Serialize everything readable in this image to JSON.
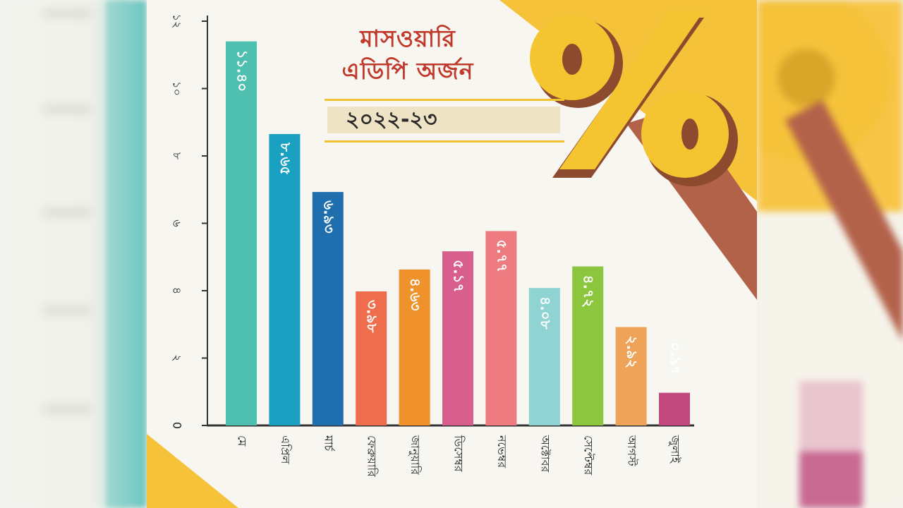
{
  "title_lines": [
    "মাসওয়ারি",
    "এডিপি অর্জন"
  ],
  "year": "২০২২-২৩",
  "percent_symbol": "%",
  "colors": {
    "title": "#c0392b",
    "accent_yellow": "#f5c23a",
    "accent_brown": "#b3624a"
  },
  "chart_data": {
    "type": "bar",
    "title": "মাসওয়ারি এডিপি অর্জন",
    "subtitle": "২০২২-২৩",
    "xlabel": "",
    "ylabel": "",
    "ylim": [
      0,
      12
    ],
    "grid": false,
    "legend": "none",
    "y_ticks": [
      {
        "value": 0,
        "label": "0"
      },
      {
        "value": 2,
        "label": "২"
      },
      {
        "value": 4,
        "label": "৪"
      },
      {
        "value": 6,
        "label": "৬"
      },
      {
        "value": 8,
        "label": "৮"
      },
      {
        "value": 10,
        "label": "১০"
      },
      {
        "value": 12,
        "label": "১২"
      }
    ],
    "categories": [
      "মে",
      "এপ্রিল",
      "মার্চ",
      "ফেব্রুয়ারি",
      "জানুয়ারি",
      "ডিসেম্বর",
      "নভেম্বর",
      "অক্টোবর",
      "সেপ্টেম্বর",
      "আগস্ট",
      "জুলাই"
    ],
    "values": [
      11.4,
      8.65,
      6.93,
      3.98,
      4.63,
      5.17,
      5.77,
      4.08,
      4.72,
      2.92,
      0.97
    ],
    "value_labels": [
      "১১.৪০",
      "৮.৬৫",
      "৬.৯৩",
      "৩.৯৮",
      "৪.৬৩",
      "৫.১৭",
      "৫.৭৭",
      "৪.০৮",
      "৪.৭২",
      "২.৯২",
      "০.৯৭"
    ],
    "bar_colors": [
      "#4fc0b0",
      "#1aa0c0",
      "#1f6fae",
      "#ee6d4c",
      "#f0922b",
      "#d85f8c",
      "#ee7b80",
      "#8fd3d3",
      "#8cc63e",
      "#efa358",
      "#c2497e"
    ]
  }
}
